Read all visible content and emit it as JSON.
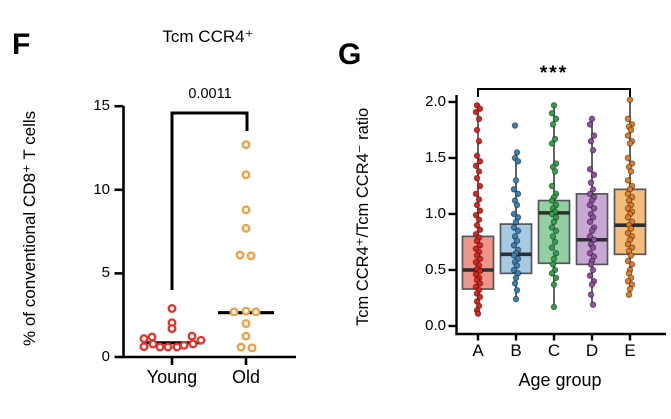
{
  "panels": {
    "f": {
      "label": "F",
      "title": "Tcm CCR4⁺",
      "p_value": "0.0011",
      "y_axis_label": "% of conventional CD8⁺ T cells"
    },
    "g": {
      "label": "G",
      "y_axis_label": "Tcm CCR4⁺/Tcm CCR4⁻ ratio",
      "x_axis_label": "Age group",
      "significance": "***"
    }
  },
  "chart_data": [
    {
      "type": "scatter",
      "title": "Tcm CCR4+",
      "ylabel": "% of conventional CD8+ T cells",
      "categories": [
        "Young",
        "Old"
      ],
      "ylim": [
        0,
        15
      ],
      "yticks": [
        "0",
        "5",
        "10",
        "15"
      ],
      "grid": false,
      "significance": {
        "label": "0.0011",
        "from": "Young",
        "to": "Old"
      },
      "series": [
        {
          "name": "Young",
          "color": "#e8312a",
          "median": 0.85,
          "points": [
            [
              2.9,
              0
            ],
            [
              2.05,
              0
            ],
            [
              1.7,
              0
            ],
            [
              1.25,
              20
            ],
            [
              1.2,
              -20
            ],
            [
              1.1,
              -28
            ],
            [
              1.0,
              29
            ],
            [
              0.78,
              -19
            ],
            [
              0.78,
              21
            ],
            [
              0.7,
              12
            ],
            [
              0.62,
              -28
            ],
            [
              0.6,
              -12
            ],
            [
              0.6,
              -4
            ],
            [
              0.6,
              5
            ]
          ]
        },
        {
          "name": "Old",
          "color": "#f49e3f",
          "median": 2.65,
          "points": [
            [
              12.7,
              0
            ],
            [
              10.9,
              0
            ],
            [
              8.8,
              0
            ],
            [
              7.7,
              0
            ],
            [
              6.1,
              -6
            ],
            [
              6.05,
              5
            ],
            [
              2.75,
              0
            ],
            [
              2.7,
              -12
            ],
            [
              2.7,
              10
            ],
            [
              2.0,
              0
            ],
            [
              1.25,
              0
            ],
            [
              0.6,
              -5
            ],
            [
              0.55,
              6
            ]
          ]
        }
      ]
    },
    {
      "type": "box",
      "categories": [
        "A",
        "B",
        "C",
        "D",
        "E"
      ],
      "xlabel": "Age group",
      "ylabel": "Tcm CCR4+/Tcm CCR4- ratio",
      "ylim": [
        0,
        2.1
      ],
      "yticks": [
        "0.0",
        "0.5",
        "1.0",
        "1.5",
        "2.0"
      ],
      "grid": false,
      "significance": {
        "label": "***",
        "from": "A",
        "to": "E"
      },
      "series": [
        {
          "name": "A",
          "dot_color": "#da251c",
          "box_color": "#f0938a",
          "q1": 0.33,
          "median": 0.5,
          "q3": 0.8,
          "whisker_low": 0.11,
          "whisker_high": 1.95,
          "points": [
            [
              1.97,
              -1
            ],
            [
              1.94,
              2
            ],
            [
              1.91,
              -2
            ],
            [
              1.85,
              1
            ],
            [
              1.75,
              -1
            ],
            [
              1.65,
              1
            ],
            [
              1.52,
              -1
            ],
            [
              1.47,
              2
            ],
            [
              1.43,
              -2
            ],
            [
              1.38,
              1
            ],
            [
              1.32,
              -1
            ],
            [
              1.25,
              2
            ],
            [
              1.18,
              -2
            ],
            [
              1.13,
              1
            ],
            [
              1.08,
              -1
            ],
            [
              1.03,
              2
            ],
            [
              0.99,
              -2
            ],
            [
              0.95,
              1
            ],
            [
              0.9,
              -1
            ],
            [
              0.86,
              2
            ],
            [
              0.82,
              -2
            ],
            [
              0.79,
              1
            ],
            [
              0.76,
              -1
            ],
            [
              0.72,
              2
            ],
            [
              0.69,
              -2
            ],
            [
              0.66,
              1
            ],
            [
              0.63,
              -1
            ],
            [
              0.6,
              2
            ],
            [
              0.57,
              -2
            ],
            [
              0.54,
              1
            ],
            [
              0.51,
              -1
            ],
            [
              0.49,
              2
            ],
            [
              0.46,
              -2
            ],
            [
              0.43,
              1
            ],
            [
              0.41,
              -1
            ],
            [
              0.38,
              2
            ],
            [
              0.35,
              -2
            ],
            [
              0.32,
              1
            ],
            [
              0.29,
              -1
            ],
            [
              0.26,
              2
            ],
            [
              0.22,
              -1
            ],
            [
              0.18,
              1
            ],
            [
              0.14,
              -1
            ],
            [
              0.11,
              0
            ]
          ]
        },
        {
          "name": "B",
          "dot_color": "#3d7fb5",
          "box_color": "#a7cae4",
          "q1": 0.47,
          "median": 0.64,
          "q3": 0.91,
          "whisker_low": 0.24,
          "whisker_high": 1.55,
          "points": [
            [
              1.79,
              -1
            ],
            [
              1.55,
              1
            ],
            [
              1.5,
              -1
            ],
            [
              1.47,
              2
            ],
            [
              1.3,
              0
            ],
            [
              1.22,
              -2
            ],
            [
              1.18,
              2
            ],
            [
              1.12,
              -1
            ],
            [
              1.08,
              1
            ],
            [
              1.0,
              -2
            ],
            [
              0.97,
              2
            ],
            [
              0.93,
              0
            ],
            [
              0.88,
              -2
            ],
            [
              0.85,
              2
            ],
            [
              0.8,
              -1
            ],
            [
              0.76,
              1
            ],
            [
              0.72,
              -2
            ],
            [
              0.68,
              2
            ],
            [
              0.65,
              0
            ],
            [
              0.63,
              -2
            ],
            [
              0.6,
              2
            ],
            [
              0.57,
              -1
            ],
            [
              0.54,
              1
            ],
            [
              0.5,
              -2
            ],
            [
              0.47,
              2
            ],
            [
              0.43,
              0
            ],
            [
              0.38,
              -1
            ],
            [
              0.32,
              1
            ],
            [
              0.24,
              0
            ]
          ]
        },
        {
          "name": "C",
          "dot_color": "#359e4c",
          "box_color": "#92d0a1",
          "q1": 0.56,
          "median": 1.01,
          "q3": 1.12,
          "whisker_low": 0.17,
          "whisker_high": 1.97,
          "points": [
            [
              1.97,
              0
            ],
            [
              1.9,
              -2
            ],
            [
              1.85,
              2
            ],
            [
              1.8,
              -1
            ],
            [
              1.67,
              1
            ],
            [
              1.63,
              -2
            ],
            [
              1.45,
              2
            ],
            [
              1.42,
              -1
            ],
            [
              1.38,
              1
            ],
            [
              1.25,
              -2
            ],
            [
              1.18,
              2
            ],
            [
              1.15,
              0
            ],
            [
              1.12,
              -2
            ],
            [
              1.08,
              2
            ],
            [
              1.05,
              -1
            ],
            [
              1.02,
              1
            ],
            [
              1.0,
              -2
            ],
            [
              0.97,
              2
            ],
            [
              0.93,
              0
            ],
            [
              0.88,
              -2
            ],
            [
              0.85,
              2
            ],
            [
              0.8,
              -1
            ],
            [
              0.75,
              1
            ],
            [
              0.7,
              -2
            ],
            [
              0.65,
              2
            ],
            [
              0.6,
              0
            ],
            [
              0.55,
              -1
            ],
            [
              0.5,
              1
            ],
            [
              0.47,
              -2
            ],
            [
              0.43,
              2
            ],
            [
              0.37,
              0
            ],
            [
              0.17,
              0
            ]
          ]
        },
        {
          "name": "D",
          "dot_color": "#8f4fa0",
          "box_color": "#c9a7d5",
          "q1": 0.55,
          "median": 0.77,
          "q3": 1.18,
          "whisker_low": 0.18,
          "whisker_high": 1.85,
          "points": [
            [
              1.85,
              0
            ],
            [
              1.8,
              -2
            ],
            [
              1.7,
              2
            ],
            [
              1.65,
              -1
            ],
            [
              1.57,
              1
            ],
            [
              1.4,
              -2
            ],
            [
              1.35,
              2
            ],
            [
              1.28,
              -1
            ],
            [
              1.22,
              1
            ],
            [
              1.18,
              -2
            ],
            [
              1.15,
              2
            ],
            [
              1.12,
              0
            ],
            [
              1.08,
              -2
            ],
            [
              1.05,
              2
            ],
            [
              1.0,
              -1
            ],
            [
              0.97,
              1
            ],
            [
              0.93,
              -2
            ],
            [
              0.88,
              2
            ],
            [
              0.85,
              0
            ],
            [
              0.8,
              -2
            ],
            [
              0.77,
              2
            ],
            [
              0.73,
              -1
            ],
            [
              0.7,
              1
            ],
            [
              0.65,
              -2
            ],
            [
              0.62,
              2
            ],
            [
              0.58,
              0
            ],
            [
              0.55,
              -1
            ],
            [
              0.5,
              1
            ],
            [
              0.45,
              -2
            ],
            [
              0.4,
              2
            ],
            [
              0.37,
              0
            ],
            [
              0.28,
              -1
            ],
            [
              0.19,
              1
            ]
          ]
        },
        {
          "name": "E",
          "dot_color": "#e07d28",
          "box_color": "#f3bd7e",
          "q1": 0.64,
          "median": 0.9,
          "q3": 1.22,
          "whisker_low": 0.28,
          "whisker_high": 2.02,
          "points": [
            [
              2.02,
              0
            ],
            [
              1.85,
              -2
            ],
            [
              1.8,
              2
            ],
            [
              1.78,
              -1
            ],
            [
              1.75,
              1
            ],
            [
              1.7,
              -2
            ],
            [
              1.65,
              2
            ],
            [
              1.63,
              0
            ],
            [
              1.5,
              -2
            ],
            [
              1.45,
              2
            ],
            [
              1.42,
              -1
            ],
            [
              1.38,
              1
            ],
            [
              1.3,
              -2
            ],
            [
              1.25,
              2
            ],
            [
              1.22,
              0
            ],
            [
              1.18,
              -2
            ],
            [
              1.15,
              2
            ],
            [
              1.12,
              -1
            ],
            [
              1.08,
              1
            ],
            [
              1.05,
              -2
            ],
            [
              1.02,
              2
            ],
            [
              1.0,
              0
            ],
            [
              0.97,
              -2
            ],
            [
              0.93,
              2
            ],
            [
              0.9,
              -1
            ],
            [
              0.87,
              1
            ],
            [
              0.83,
              -2
            ],
            [
              0.8,
              2
            ],
            [
              0.77,
              0
            ],
            [
              0.73,
              -2
            ],
            [
              0.7,
              2
            ],
            [
              0.67,
              -1
            ],
            [
              0.63,
              1
            ],
            [
              0.58,
              -2
            ],
            [
              0.55,
              2
            ],
            [
              0.5,
              0
            ],
            [
              0.47,
              -1
            ],
            [
              0.43,
              1
            ],
            [
              0.4,
              -2
            ],
            [
              0.37,
              2
            ],
            [
              0.33,
              0
            ],
            [
              0.28,
              -1
            ]
          ]
        }
      ]
    }
  ]
}
